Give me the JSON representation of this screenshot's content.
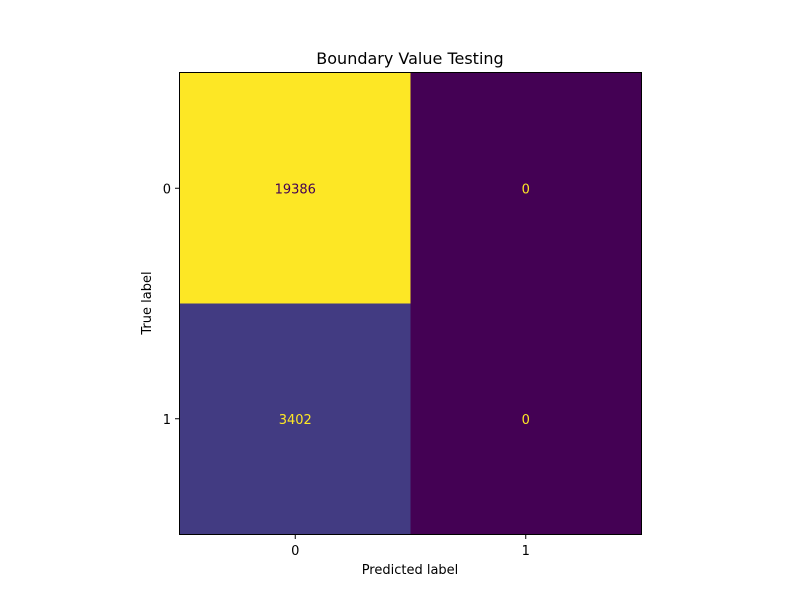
{
  "chart_data": {
    "type": "heatmap",
    "title": "Boundary Value Testing",
    "xlabel": "Predicted label",
    "ylabel": "True label",
    "x_categories": [
      "0",
      "1"
    ],
    "y_categories": [
      "0",
      "1"
    ],
    "matrix": [
      [
        19386,
        0
      ],
      [
        3402,
        0
      ]
    ],
    "cell_labels": [
      [
        "19386",
        "0"
      ],
      [
        "3402",
        "0"
      ]
    ],
    "colormap": "viridis",
    "grid": false,
    "colorbar": false
  },
  "colors": {
    "high": "#fde725",
    "mid": "#3b3f86",
    "low": "#440154",
    "text_on_dark": "#fde725",
    "text_on_light": "#440154"
  }
}
